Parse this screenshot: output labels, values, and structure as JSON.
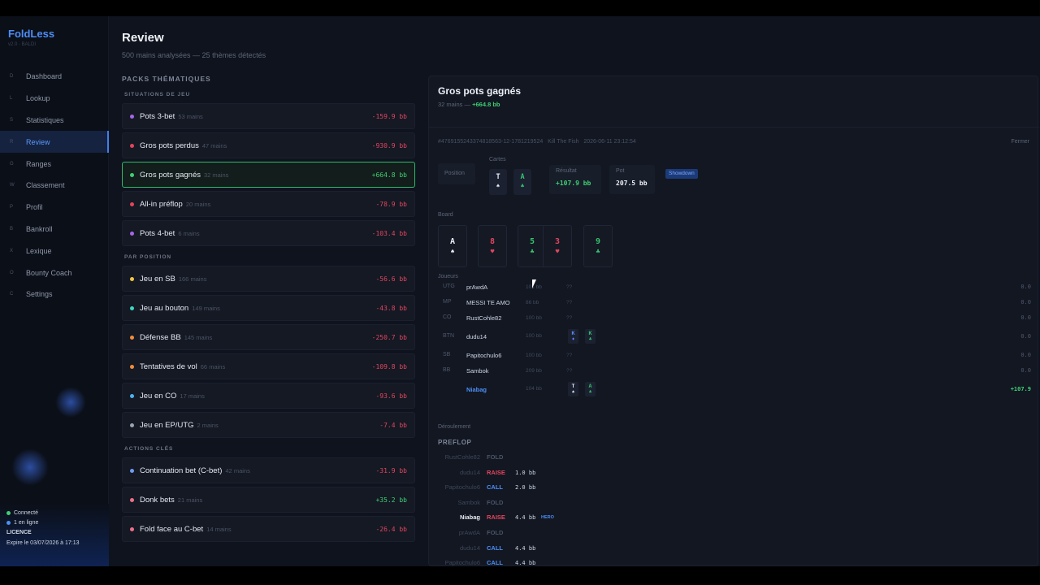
{
  "app": {
    "brand": "FoldLess",
    "version": "v2.0 · BALDI"
  },
  "nav": [
    {
      "key": "D",
      "label": "Dashboard"
    },
    {
      "key": "L",
      "label": "Lookup"
    },
    {
      "key": "S",
      "label": "Statistiques"
    },
    {
      "key": "R",
      "label": "Review",
      "active": true
    },
    {
      "key": "G",
      "label": "Ranges"
    },
    {
      "key": "W",
      "label": "Classement"
    },
    {
      "key": "P",
      "label": "Profil"
    },
    {
      "key": "B",
      "label": "Bankroll"
    },
    {
      "key": "X",
      "label": "Lexique"
    },
    {
      "key": "O",
      "label": "Bounty Coach"
    },
    {
      "key": "C",
      "label": "Settings"
    }
  ],
  "footer": {
    "status1": "Connecté",
    "status2": "1 en ligne",
    "license": "LICENCE",
    "expires": "Expire le 03/07/2026 à 17:13"
  },
  "header": {
    "title": "Review",
    "subtitle": "500 mains analysées — 25 thèmes détectés"
  },
  "packs_title": "PACKS THÉMATIQUES",
  "sections": [
    {
      "title": "SITUATIONS DE JEU",
      "items": [
        {
          "name": "Pots 3-bet",
          "count": "53 mains",
          "value": "-159.9 bb",
          "color": "#a865e8"
        },
        {
          "name": "Gros pots perdus",
          "count": "47 mains",
          "value": "-930.9 bb",
          "color": "#e2455d"
        },
        {
          "name": "Gros pots gagnés",
          "count": "32 mains",
          "value": "+664.8 bb",
          "color": "#3fcf73",
          "selected": true
        },
        {
          "name": "All-in préflop",
          "count": "20 mains",
          "value": "-78.9 bb",
          "color": "#e2455d"
        },
        {
          "name": "Pots 4-bet",
          "count": "6 mains",
          "value": "-103.4 bb",
          "color": "#a865e8"
        }
      ]
    },
    {
      "title": "PAR POSITION",
      "items": [
        {
          "name": "Jeu en SB",
          "count": "166 mains",
          "value": "-56.6 bb",
          "color": "#f2c744"
        },
        {
          "name": "Jeu au bouton",
          "count": "149 mains",
          "value": "-43.8 bb",
          "color": "#3fd6c2"
        },
        {
          "name": "Défense BB",
          "count": "145 mains",
          "value": "-250.7 bb",
          "color": "#f28c3a"
        },
        {
          "name": "Tentatives de vol",
          "count": "66 mains",
          "value": "-109.8 bb",
          "color": "#f28c3a"
        },
        {
          "name": "Jeu en CO",
          "count": "17 mains",
          "value": "-93.6 bb",
          "color": "#4fb1ef"
        },
        {
          "name": "Jeu en EP/UTG",
          "count": "2 mains",
          "value": "-7.4 bb",
          "color": "#9aa3b5"
        }
      ]
    },
    {
      "title": "ACTIONS CLÉS",
      "items": [
        {
          "name": "Continuation bet (C-bet)",
          "count": "42 mains",
          "value": "-31.9 bb",
          "color": "#6f9bf0"
        },
        {
          "name": "Donk bets",
          "count": "21 mains",
          "value": "+35.2 bb",
          "color": "#ef6f8a"
        },
        {
          "name": "Fold face au C-bet",
          "count": "14 mains",
          "value": "-26.4 bb",
          "color": "#ef6f8a"
        }
      ]
    }
  ],
  "panel": {
    "title": "Gros pots gagnés",
    "count": "32 mains",
    "sep": " — ",
    "total": "+664.8 bb",
    "hand_id": "#4769155243374818563-12-1781219524",
    "table": "Kill The Fish",
    "datetime": "2026-06-11 23:12:54",
    "close": "Fermer",
    "position_label": "Position",
    "cards_label": "Cartes",
    "hero_cards": [
      {
        "rank": "T",
        "suit": "♠",
        "color": "w"
      },
      {
        "rank": "A",
        "suit": "♣",
        "color": "g"
      }
    ],
    "result_label": "Résultat",
    "result": "+107.9 bb",
    "pot_label": "Pot",
    "pot": "207.5 bb",
    "showdown": "Showdown",
    "board_label": "Board",
    "board": [
      {
        "rank": "A",
        "suit": "♠",
        "color": "w"
      },
      {
        "rank": "8",
        "suit": "♥",
        "color": "r"
      },
      {
        "rank": "5",
        "suit": "♣",
        "color": "g"
      },
      {
        "rank": "3",
        "suit": "♥",
        "color": "r"
      },
      {
        "rank": "9",
        "suit": "♣",
        "color": "g"
      }
    ],
    "players_label": "Joueurs",
    "players": [
      {
        "pos": "UTG",
        "name": "prAwdA",
        "stack": "101 bb",
        "q": "??",
        "res": "0.0"
      },
      {
        "pos": "MP",
        "name": "MESSI TE AMO",
        "stack": "86 bb",
        "q": "??",
        "res": "0.0"
      },
      {
        "pos": "CO",
        "name": "RustCohle82",
        "stack": "100 bb",
        "q": "??",
        "res": "0.0"
      },
      {
        "pos": "BTN",
        "name": "dudu14",
        "stack": "100 bb",
        "q": "",
        "res": "0.0",
        "cards": [
          {
            "rank": "K",
            "suit": "♦",
            "color": "b"
          },
          {
            "rank": "K",
            "suit": "♣",
            "color": "g"
          }
        ]
      },
      {
        "pos": "SB",
        "name": "Papitochulo6",
        "stack": "100 bb",
        "q": "??",
        "res": "0.0"
      },
      {
        "pos": "BB",
        "name": "Sambok",
        "stack": "209 bb",
        "q": "??",
        "res": "0.0"
      },
      {
        "pos": "",
        "name": "Niabag",
        "stack": "104 bb",
        "q": "",
        "res": "+107.9",
        "hero": true,
        "cards": [
          {
            "rank": "T",
            "suit": "♠",
            "color": "w"
          },
          {
            "rank": "A",
            "suit": "♣",
            "color": "g"
          }
        ]
      }
    ],
    "flow_label": "Déroulement",
    "street": "PREFLOP",
    "actions": [
      {
        "name": "RustCohle82",
        "type": "FOLD",
        "amt": ""
      },
      {
        "name": "dudu14",
        "type": "RAISE",
        "amt": "1.0 bb"
      },
      {
        "name": "Papitochulo6",
        "type": "CALL",
        "amt": "2.0 bb"
      },
      {
        "name": "Sambok",
        "type": "FOLD",
        "amt": ""
      },
      {
        "name": "Niabag",
        "type": "RAISE",
        "amt": "4.4 bb",
        "hero": "HERO"
      },
      {
        "name": "prAwdA",
        "type": "FOLD",
        "amt": ""
      },
      {
        "name": "dudu14",
        "type": "CALL",
        "amt": "4.4 bb"
      },
      {
        "name": "Papitochulo6",
        "type": "CALL",
        "amt": "4.4 bb"
      }
    ]
  }
}
